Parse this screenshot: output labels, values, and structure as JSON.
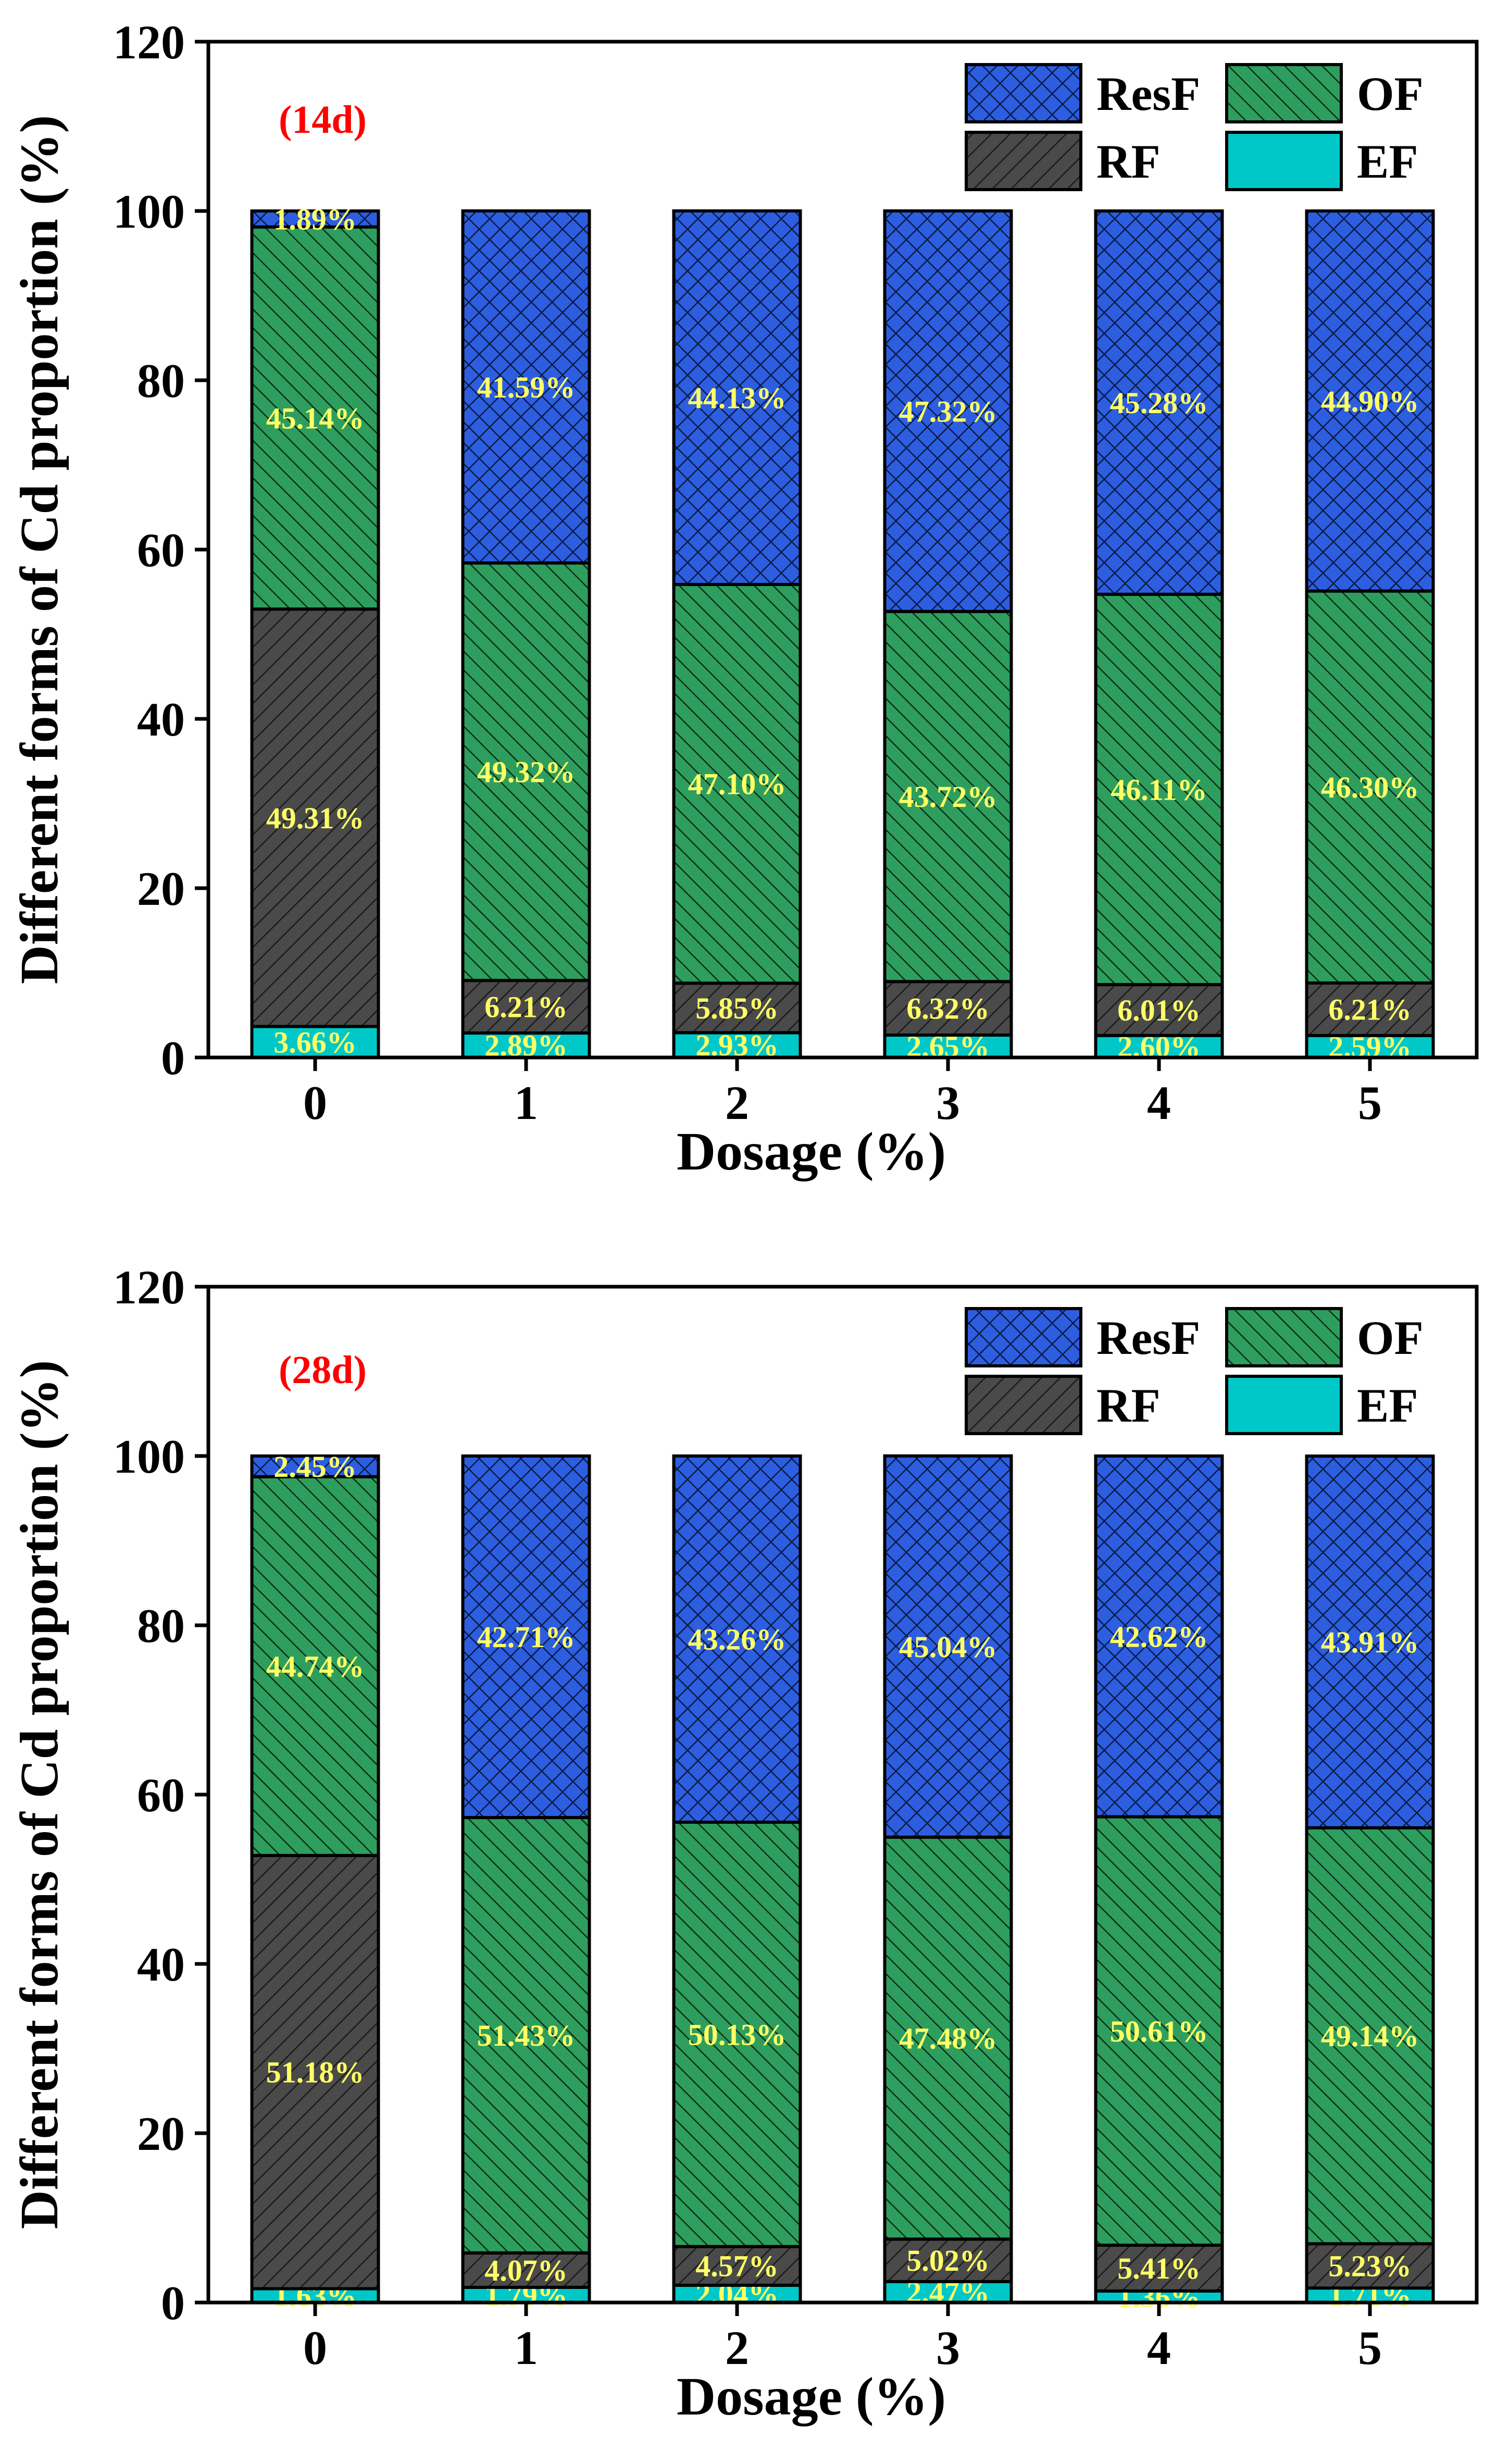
{
  "chart_data": [
    {
      "type": "bar",
      "stacked": true,
      "panel_label": "(14d)",
      "xlabel": "Dosage (%)",
      "ylabel": "Different forms of Cd proportion (%)",
      "ylim": [
        0,
        120
      ],
      "yticks": [
        "0",
        "20",
        "40",
        "60",
        "80",
        "100",
        "120"
      ],
      "categories": [
        "0",
        "1",
        "2",
        "3",
        "4",
        "5"
      ],
      "legend_position": "top-right",
      "series": [
        {
          "name": "EF",
          "color": "#00c8c8",
          "values": [
            3.66,
            2.89,
            2.93,
            2.65,
            2.6,
            2.59
          ],
          "labels": [
            "3.66%",
            "2.89%",
            "2.93%",
            "2.65%",
            "2.60%",
            "2.59%"
          ]
        },
        {
          "name": "RF",
          "color": "#4a4a4a",
          "values": [
            49.31,
            6.21,
            5.85,
            6.32,
            6.01,
            6.21
          ],
          "labels": [
            "49.31%",
            "6.21%",
            "5.85%",
            "6.32%",
            "6.01%",
            "6.21%"
          ]
        },
        {
          "name": "OF",
          "color": "#2e9e5e",
          "values": [
            45.14,
            49.32,
            47.1,
            43.72,
            46.11,
            46.3
          ],
          "labels": [
            "45.14%",
            "49.32%",
            "47.10%",
            "43.72%",
            "46.11%",
            "46.30%"
          ]
        },
        {
          "name": "ResF",
          "color": "#2d5ee0",
          "values": [
            1.89,
            41.59,
            44.13,
            47.32,
            45.28,
            44.9
          ],
          "labels": [
            "1.89%",
            "41.59%",
            "44.13%",
            "47.32%",
            "45.28%",
            "44.90%"
          ]
        }
      ]
    },
    {
      "type": "bar",
      "stacked": true,
      "panel_label": "(28d)",
      "xlabel": "Dosage (%)",
      "ylabel": "Different forms of Cd proportion (%)",
      "ylim": [
        0,
        120
      ],
      "yticks": [
        "0",
        "20",
        "40",
        "60",
        "80",
        "100",
        "120"
      ],
      "categories": [
        "0",
        "1",
        "2",
        "3",
        "4",
        "5"
      ],
      "legend_position": "top-right",
      "series": [
        {
          "name": "EF",
          "color": "#00c8c8",
          "values": [
            1.63,
            1.79,
            2.04,
            2.47,
            1.36,
            1.71
          ],
          "labels": [
            "1.63%",
            "1.79%",
            "2.04%",
            "2.47%",
            "1.36%",
            "1.71%"
          ]
        },
        {
          "name": "RF",
          "color": "#4a4a4a",
          "values": [
            51.18,
            4.07,
            4.57,
            5.02,
            5.41,
            5.23
          ],
          "labels": [
            "51.18%",
            "4.07%",
            "4.57%",
            "5.02%",
            "5.41%",
            "5.23%"
          ]
        },
        {
          "name": "OF",
          "color": "#2e9e5e",
          "values": [
            44.74,
            51.43,
            50.13,
            47.48,
            50.61,
            49.14
          ],
          "labels": [
            "44.74%",
            "51.43%",
            "50.13%",
            "47.48%",
            "50.61%",
            "49.14%"
          ]
        },
        {
          "name": "ResF",
          "color": "#2d5ee0",
          "values": [
            2.45,
            42.71,
            43.26,
            45.04,
            42.62,
            43.91
          ],
          "labels": [
            "2.45%",
            "42.71%",
            "43.26%",
            "45.04%",
            "42.62%",
            "43.91%"
          ]
        }
      ]
    }
  ],
  "legend_order": [
    "ResF",
    "OF",
    "RF",
    "EF"
  ]
}
